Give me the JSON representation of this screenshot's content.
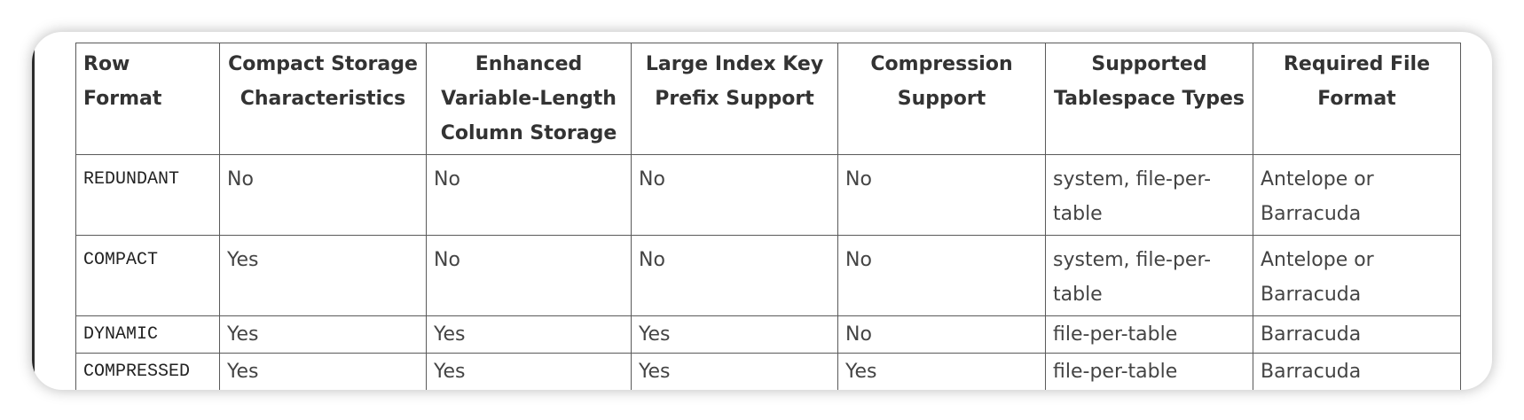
{
  "table": {
    "headers": [
      "Row Format",
      "Compact Storage Characteristics",
      "Enhanced Variable-Length Column Storage",
      "Large Index Key Prefix Support",
      "Compression Support",
      "Supported Tablespace Types",
      "Required File Format"
    ],
    "rows": [
      [
        "REDUNDANT",
        "No",
        "No",
        "No",
        "No",
        "system, file-per-table",
        "Antelope or Barracuda"
      ],
      [
        "COMPACT",
        "Yes",
        "No",
        "No",
        "No",
        "system, file-per-table",
        "Antelope or Barracuda"
      ],
      [
        "DYNAMIC",
        "Yes",
        "Yes",
        "Yes",
        "No",
        "file-per-table",
        "Barracuda"
      ],
      [
        "COMPRESSED",
        "Yes",
        "Yes",
        "Yes",
        "Yes",
        "file-per-table",
        "Barracuda"
      ]
    ]
  }
}
